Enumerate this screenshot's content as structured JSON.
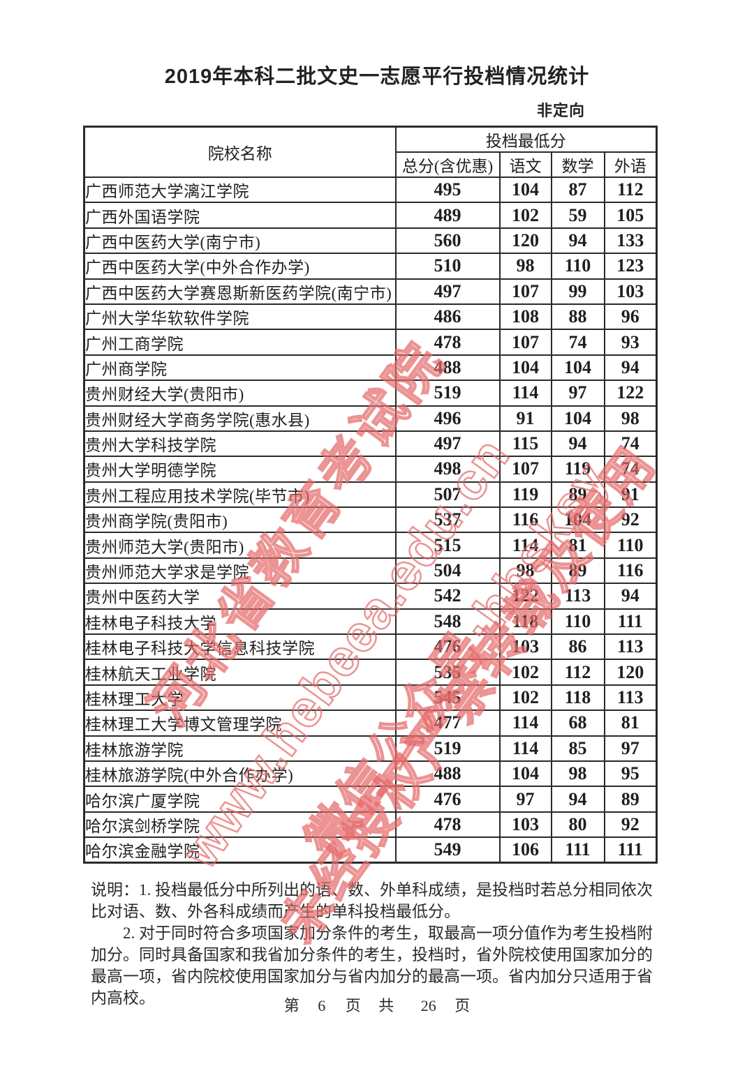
{
  "page": {
    "title": "2019年本科二批文史一志愿平行投档情况统计",
    "orientation": "非定向",
    "page_footer": {
      "prefix": "第",
      "page_number": "6",
      "middle": "页 共",
      "total_pages": "26",
      "suffix": "页"
    }
  },
  "table": {
    "headers": {
      "college": "院校名称",
      "group": "投档最低分",
      "columns": [
        "总分(含优惠)",
        "语文",
        "数学",
        "外语"
      ]
    },
    "rows": [
      {
        "name": "广西师范大学漓江学院",
        "total": 495,
        "chinese": 104,
        "math": 87,
        "foreign": 112
      },
      {
        "name": "广西外国语学院",
        "total": 489,
        "chinese": 102,
        "math": 59,
        "foreign": 105
      },
      {
        "name": "广西中医药大学(南宁市)",
        "total": 560,
        "chinese": 120,
        "math": 94,
        "foreign": 133
      },
      {
        "name": "广西中医药大学(中外合作办学)",
        "total": 510,
        "chinese": 98,
        "math": 110,
        "foreign": 123
      },
      {
        "name": "广西中医药大学赛恩斯新医药学院(南宁市)",
        "total": 497,
        "chinese": 107,
        "math": 99,
        "foreign": 103
      },
      {
        "name": "广州大学华软软件学院",
        "total": 486,
        "chinese": 108,
        "math": 88,
        "foreign": 96
      },
      {
        "name": "广州工商学院",
        "total": 478,
        "chinese": 107,
        "math": 74,
        "foreign": 93
      },
      {
        "name": "广州商学院",
        "total": 488,
        "chinese": 104,
        "math": 104,
        "foreign": 94
      },
      {
        "name": "贵州财经大学(贵阳市)",
        "total": 519,
        "chinese": 114,
        "math": 97,
        "foreign": 122
      },
      {
        "name": "贵州财经大学商务学院(惠水县)",
        "total": 496,
        "chinese": 91,
        "math": 104,
        "foreign": 98
      },
      {
        "name": "贵州大学科技学院",
        "total": 497,
        "chinese": 115,
        "math": 94,
        "foreign": 74
      },
      {
        "name": "贵州大学明德学院",
        "total": 498,
        "chinese": 107,
        "math": 119,
        "foreign": 74
      },
      {
        "name": "贵州工程应用技术学院(毕节市)",
        "total": 507,
        "chinese": 119,
        "math": 89,
        "foreign": 91
      },
      {
        "name": "贵州商学院(贵阳市)",
        "total": 537,
        "chinese": 116,
        "math": 104,
        "foreign": 92
      },
      {
        "name": "贵州师范大学(贵阳市)",
        "total": 515,
        "chinese": 114,
        "math": 81,
        "foreign": 110
      },
      {
        "name": "贵州师范大学求是学院",
        "total": 504,
        "chinese": 98,
        "math": 89,
        "foreign": 116
      },
      {
        "name": "贵州中医药大学",
        "total": 542,
        "chinese": 122,
        "math": 113,
        "foreign": 94
      },
      {
        "name": "桂林电子科技大学",
        "total": 548,
        "chinese": 118,
        "math": 110,
        "foreign": 111
      },
      {
        "name": "桂林电子科技大学信息科技学院",
        "total": 476,
        "chinese": 103,
        "math": 86,
        "foreign": 113
      },
      {
        "name": "桂林航天工业学院",
        "total": 535,
        "chinese": 102,
        "math": 112,
        "foreign": 120
      },
      {
        "name": "桂林理工大学",
        "total": 545,
        "chinese": 102,
        "math": 118,
        "foreign": 113
      },
      {
        "name": "桂林理工大学博文管理学院",
        "total": 477,
        "chinese": 114,
        "math": 68,
        "foreign": 81
      },
      {
        "name": "桂林旅游学院",
        "total": 519,
        "chinese": 114,
        "math": 85,
        "foreign": 97
      },
      {
        "name": "桂林旅游学院(中外合作办学)",
        "total": 488,
        "chinese": 104,
        "math": 98,
        "foreign": 95
      },
      {
        "name": "哈尔滨广厦学院",
        "total": 476,
        "chinese": 97,
        "math": 94,
        "foreign": 89
      },
      {
        "name": "哈尔滨剑桥学院",
        "total": 478,
        "chinese": 103,
        "math": 80,
        "foreign": 92
      },
      {
        "name": "哈尔滨金融学院",
        "total": 549,
        "chinese": 106,
        "math": 111,
        "foreign": 111
      }
    ]
  },
  "notes": [
    "说明：1. 投档最低分中所列出的语、数、外单科成绩，是投档时若总分相同依次比对语、数、外各科成绩而产生的单科投档最低分。",
    "2. 对于同时符合多项国家加分条件的考生，取最高一项分值作为考生投档附加分。同时具备国家和我省加分条件的考生，投档时，省外院校使用国家加分的最高一项，省内院校使用国家加分与省内加分的最高一项。省内加分只适用于省内高校。"
  ],
  "watermark": {
    "color": "#e66a6a",
    "lines": [
      "河北省教育考试院",
      "www.hebeea.edu.cn",
      "微信公众号·hbsksy",
      "未经授权严禁转载及使用"
    ]
  }
}
